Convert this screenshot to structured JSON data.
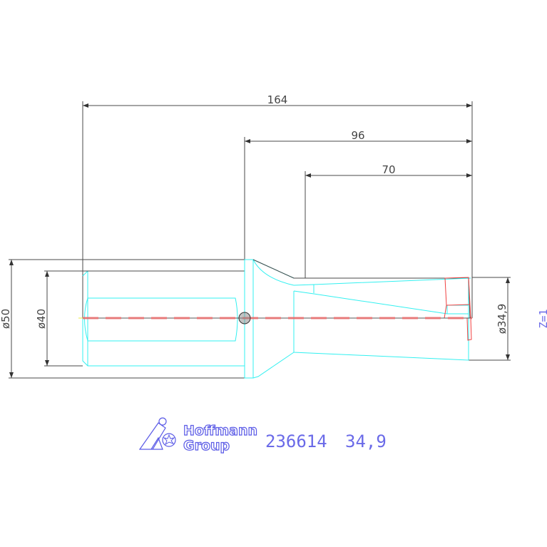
{
  "drawing": {
    "dimensions": {
      "overall_length": "164",
      "body_length": "96",
      "flute_length": "70",
      "shank_outer_diameter": "ø50",
      "shank_diameter": "ø40",
      "cutting_diameter": "ø34,9"
    },
    "teeth_count": "Z=1",
    "article_number": "236614",
    "nominal_diameter": "34,9",
    "logo_text": [
      "Hoffmann",
      "Group"
    ],
    "colors": {
      "dimension": "#4a4a4a",
      "contour": "#33f0f0",
      "insert": "#f04040",
      "label": "#6a6ae8"
    }
  }
}
